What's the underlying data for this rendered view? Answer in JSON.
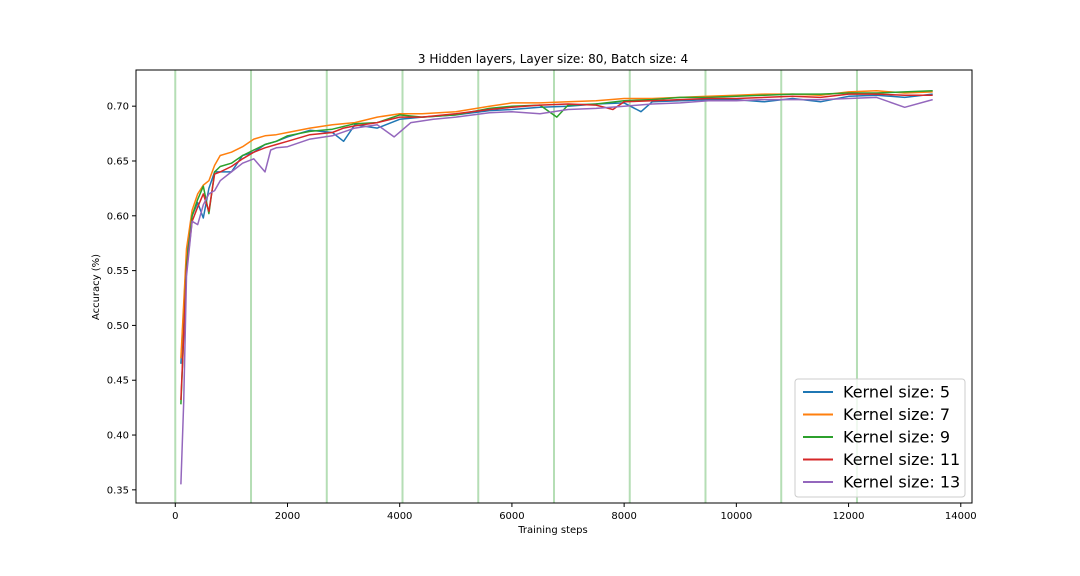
{
  "chart_data": {
    "type": "line",
    "title": "3 Hidden layers, Layer size: 80, Batch size: 4",
    "xlabel": "Training steps",
    "ylabel": "Accuracy (%)",
    "xlim": [
      -700,
      14200
    ],
    "ylim": [
      0.338,
      0.733
    ],
    "xticks": [
      0,
      2000,
      4000,
      6000,
      8000,
      10000,
      12000,
      14000
    ],
    "xtick_labels": [
      "0",
      "2000",
      "4000",
      "6000",
      "8000",
      "10000",
      "12000",
      "14000"
    ],
    "yticks": [
      0.35,
      0.4,
      0.45,
      0.5,
      0.55,
      0.6,
      0.65,
      0.7
    ],
    "ytick_labels": [
      "0.35",
      "0.40",
      "0.45",
      "0.50",
      "0.55",
      "0.60",
      "0.65",
      "0.70"
    ],
    "grid": false,
    "legend_position": "lower-right",
    "vertical_lines": {
      "color": "#2ca02c",
      "x": [
        0,
        1350,
        2700,
        4050,
        5400,
        6750,
        8100,
        9450,
        10800,
        12150
      ]
    },
    "series": [
      {
        "name": "Kernel size:  5",
        "color": "#1f77b4",
        "points": [
          [
            100,
            0.465
          ],
          [
            200,
            0.565
          ],
          [
            300,
            0.6
          ],
          [
            400,
            0.612
          ],
          [
            500,
            0.598
          ],
          [
            600,
            0.625
          ],
          [
            700,
            0.64
          ],
          [
            800,
            0.64
          ],
          [
            1000,
            0.64
          ],
          [
            1200,
            0.655
          ],
          [
            1400,
            0.658
          ],
          [
            1600,
            0.665
          ],
          [
            1800,
            0.668
          ],
          [
            2000,
            0.672
          ],
          [
            2400,
            0.678
          ],
          [
            2800,
            0.676
          ],
          [
            3000,
            0.668
          ],
          [
            3200,
            0.683
          ],
          [
            3600,
            0.68
          ],
          [
            4000,
            0.688
          ],
          [
            4400,
            0.69
          ],
          [
            5000,
            0.692
          ],
          [
            5600,
            0.696
          ],
          [
            6000,
            0.697
          ],
          [
            6500,
            0.699
          ],
          [
            7000,
            0.7
          ],
          [
            7500,
            0.702
          ],
          [
            8000,
            0.703
          ],
          [
            8300,
            0.695
          ],
          [
            8500,
            0.704
          ],
          [
            9000,
            0.705
          ],
          [
            9500,
            0.706
          ],
          [
            10000,
            0.706
          ],
          [
            10500,
            0.704
          ],
          [
            11000,
            0.707
          ],
          [
            11500,
            0.704
          ],
          [
            12000,
            0.709
          ],
          [
            12500,
            0.71
          ],
          [
            13000,
            0.708
          ],
          [
            13500,
            0.711
          ]
        ]
      },
      {
        "name": "Kernel size:  7",
        "color": "#ff7f0e",
        "points": [
          [
            100,
            0.47
          ],
          [
            200,
            0.57
          ],
          [
            300,
            0.605
          ],
          [
            400,
            0.62
          ],
          [
            500,
            0.628
          ],
          [
            600,
            0.632
          ],
          [
            700,
            0.646
          ],
          [
            800,
            0.655
          ],
          [
            1000,
            0.658
          ],
          [
            1200,
            0.663
          ],
          [
            1400,
            0.67
          ],
          [
            1600,
            0.673
          ],
          [
            1800,
            0.674
          ],
          [
            2000,
            0.676
          ],
          [
            2400,
            0.68
          ],
          [
            2800,
            0.683
          ],
          [
            3200,
            0.685
          ],
          [
            3600,
            0.69
          ],
          [
            4000,
            0.693
          ],
          [
            4400,
            0.693
          ],
          [
            5000,
            0.695
          ],
          [
            5600,
            0.7
          ],
          [
            6000,
            0.703
          ],
          [
            6500,
            0.703
          ],
          [
            7000,
            0.704
          ],
          [
            7500,
            0.705
          ],
          [
            8000,
            0.707
          ],
          [
            8500,
            0.707
          ],
          [
            9000,
            0.708
          ],
          [
            9500,
            0.709
          ],
          [
            10000,
            0.71
          ],
          [
            10500,
            0.711
          ],
          [
            11000,
            0.711
          ],
          [
            11500,
            0.71
          ],
          [
            12000,
            0.713
          ],
          [
            12500,
            0.714
          ],
          [
            13000,
            0.712
          ],
          [
            13500,
            0.713
          ]
        ]
      },
      {
        "name": "Kernel size:  9",
        "color": "#2ca02c",
        "points": [
          [
            100,
            0.428
          ],
          [
            200,
            0.555
          ],
          [
            300,
            0.6
          ],
          [
            400,
            0.615
          ],
          [
            500,
            0.627
          ],
          [
            600,
            0.602
          ],
          [
            700,
            0.64
          ],
          [
            800,
            0.645
          ],
          [
            1000,
            0.648
          ],
          [
            1200,
            0.655
          ],
          [
            1400,
            0.66
          ],
          [
            1600,
            0.665
          ],
          [
            1800,
            0.668
          ],
          [
            2000,
            0.673
          ],
          [
            2400,
            0.677
          ],
          [
            2800,
            0.679
          ],
          [
            3200,
            0.684
          ],
          [
            3600,
            0.685
          ],
          [
            4000,
            0.692
          ],
          [
            4400,
            0.69
          ],
          [
            5000,
            0.692
          ],
          [
            5600,
            0.698
          ],
          [
            6000,
            0.7
          ],
          [
            6500,
            0.701
          ],
          [
            6800,
            0.69
          ],
          [
            7000,
            0.701
          ],
          [
            7500,
            0.702
          ],
          [
            8000,
            0.705
          ],
          [
            8500,
            0.706
          ],
          [
            9000,
            0.708
          ],
          [
            9500,
            0.708
          ],
          [
            10000,
            0.709
          ],
          [
            10500,
            0.71
          ],
          [
            11000,
            0.711
          ],
          [
            11500,
            0.711
          ],
          [
            12000,
            0.712
          ],
          [
            12500,
            0.712
          ],
          [
            13000,
            0.713
          ],
          [
            13500,
            0.714
          ]
        ]
      },
      {
        "name": "Kernel size:  11",
        "color": "#d62728",
        "points": [
          [
            100,
            0.432
          ],
          [
            200,
            0.55
          ],
          [
            300,
            0.595
          ],
          [
            400,
            0.608
          ],
          [
            500,
            0.62
          ],
          [
            600,
            0.604
          ],
          [
            700,
            0.638
          ],
          [
            800,
            0.64
          ],
          [
            1000,
            0.645
          ],
          [
            1200,
            0.652
          ],
          [
            1400,
            0.658
          ],
          [
            1600,
            0.662
          ],
          [
            1800,
            0.665
          ],
          [
            2000,
            0.668
          ],
          [
            2400,
            0.674
          ],
          [
            2800,
            0.676
          ],
          [
            3000,
            0.68
          ],
          [
            3200,
            0.682
          ],
          [
            3600,
            0.685
          ],
          [
            4000,
            0.69
          ],
          [
            4400,
            0.69
          ],
          [
            5000,
            0.693
          ],
          [
            5600,
            0.697
          ],
          [
            6000,
            0.699
          ],
          [
            6500,
            0.701
          ],
          [
            7000,
            0.702
          ],
          [
            7500,
            0.701
          ],
          [
            7800,
            0.697
          ],
          [
            8000,
            0.704
          ],
          [
            8500,
            0.705
          ],
          [
            9000,
            0.706
          ],
          [
            9500,
            0.707
          ],
          [
            10000,
            0.707
          ],
          [
            10500,
            0.708
          ],
          [
            11000,
            0.709
          ],
          [
            11500,
            0.708
          ],
          [
            12000,
            0.711
          ],
          [
            12500,
            0.711
          ],
          [
            13000,
            0.71
          ],
          [
            13500,
            0.71
          ]
        ]
      },
      {
        "name": "Kernel size:  13",
        "color": "#9467bd",
        "points": [
          [
            100,
            0.355
          ],
          [
            150,
            0.43
          ],
          [
            200,
            0.545
          ],
          [
            300,
            0.595
          ],
          [
            400,
            0.592
          ],
          [
            500,
            0.61
          ],
          [
            600,
            0.62
          ],
          [
            700,
            0.623
          ],
          [
            800,
            0.632
          ],
          [
            1000,
            0.64
          ],
          [
            1200,
            0.648
          ],
          [
            1400,
            0.652
          ],
          [
            1600,
            0.64
          ],
          [
            1700,
            0.66
          ],
          [
            1800,
            0.662
          ],
          [
            2000,
            0.663
          ],
          [
            2400,
            0.67
          ],
          [
            2800,
            0.673
          ],
          [
            3200,
            0.68
          ],
          [
            3600,
            0.683
          ],
          [
            3900,
            0.672
          ],
          [
            4200,
            0.685
          ],
          [
            4600,
            0.688
          ],
          [
            5000,
            0.69
          ],
          [
            5600,
            0.694
          ],
          [
            6000,
            0.695
          ],
          [
            6500,
            0.693
          ],
          [
            7000,
            0.697
          ],
          [
            7500,
            0.698
          ],
          [
            8000,
            0.7
          ],
          [
            8500,
            0.702
          ],
          [
            9000,
            0.703
          ],
          [
            9500,
            0.705
          ],
          [
            10000,
            0.705
          ],
          [
            10500,
            0.706
          ],
          [
            11000,
            0.706
          ],
          [
            11500,
            0.706
          ],
          [
            12000,
            0.707
          ],
          [
            12500,
            0.708
          ],
          [
            13000,
            0.699
          ],
          [
            13500,
            0.706
          ]
        ]
      }
    ]
  }
}
